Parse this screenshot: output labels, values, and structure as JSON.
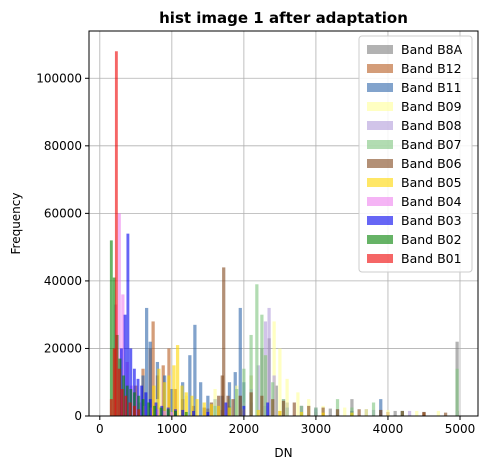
{
  "chart_data": {
    "type": "histogram",
    "title": "hist image 1 after adaptation",
    "xlabel": "DN",
    "ylabel": "Frequency",
    "xlim": [
      -150,
      5250
    ],
    "ylim": [
      0,
      114000
    ],
    "x_ticks": [
      0,
      1000,
      2000,
      3000,
      4000,
      5000
    ],
    "y_ticks": [
      0,
      20000,
      40000,
      60000,
      80000,
      100000
    ],
    "grid": true,
    "legend_position": "top-right",
    "bar_alpha": 0.6,
    "series": [
      {
        "name": "Band B8A",
        "color": "#7f7f7f",
        "bin_width": 45,
        "bins": [
          [
            1800,
            3000
          ],
          [
            1950,
            6000
          ],
          [
            2100,
            12000
          ],
          [
            2250,
            20000
          ],
          [
            2350,
            23000
          ],
          [
            2450,
            9000
          ],
          [
            2600,
            4000
          ],
          [
            2800,
            3000
          ],
          [
            3000,
            2500
          ],
          [
            3200,
            2200
          ],
          [
            3500,
            5000
          ],
          [
            3700,
            2000
          ],
          [
            3900,
            1800
          ],
          [
            4100,
            1500
          ],
          [
            4500,
            1200
          ],
          [
            4960,
            22000
          ]
        ]
      },
      {
        "name": "Band B12",
        "color": "#b85c1f",
        "bin_width": 45,
        "bins": [
          [
            500,
            9000
          ],
          [
            600,
            14000
          ],
          [
            700,
            20000
          ],
          [
            740,
            28000
          ],
          [
            800,
            12000
          ],
          [
            880,
            15000
          ],
          [
            960,
            20000
          ],
          [
            1050,
            8000
          ],
          [
            1150,
            5000
          ],
          [
            1300,
            3000
          ],
          [
            1500,
            2200
          ],
          [
            1700,
            1800
          ],
          [
            2000,
            1500
          ],
          [
            2500,
            1500
          ],
          [
            3000,
            1200
          ],
          [
            3500,
            1500
          ],
          [
            4000,
            1200
          ],
          [
            4500,
            1000
          ],
          [
            4960,
            1500
          ]
        ]
      },
      {
        "name": "Band B11",
        "color": "#2e66aa",
        "bin_width": 45,
        "bins": [
          [
            600,
            12000
          ],
          [
            650,
            32000
          ],
          [
            700,
            22000
          ],
          [
            800,
            16000
          ],
          [
            900,
            12000
          ],
          [
            1000,
            8000
          ],
          [
            1150,
            10000
          ],
          [
            1250,
            18000
          ],
          [
            1320,
            27000
          ],
          [
            1400,
            10000
          ],
          [
            1500,
            6000
          ],
          [
            1600,
            5000
          ],
          [
            1700,
            6000
          ],
          [
            1800,
            10000
          ],
          [
            1880,
            13000
          ],
          [
            1950,
            32000
          ],
          [
            2000,
            10000
          ],
          [
            2100,
            4000
          ],
          [
            2300,
            3000
          ],
          [
            2600,
            2500
          ],
          [
            3000,
            2000
          ],
          [
            3500,
            1500
          ],
          [
            3900,
            5000
          ],
          [
            4200,
            1500
          ],
          [
            4960,
            1500
          ]
        ]
      },
      {
        "name": "Band B09",
        "color": "#ffff99",
        "bin_width": 45,
        "bins": [
          [
            800,
            5000
          ],
          [
            1200,
            6000
          ],
          [
            1600,
            8000
          ],
          [
            1900,
            9000
          ],
          [
            2100,
            12000
          ],
          [
            2300,
            18000
          ],
          [
            2420,
            28000
          ],
          [
            2500,
            20000
          ],
          [
            2600,
            11000
          ],
          [
            2750,
            7000
          ],
          [
            2900,
            5000
          ],
          [
            3100,
            3000
          ],
          [
            3400,
            2500
          ],
          [
            3700,
            2000
          ],
          [
            4000,
            1800
          ],
          [
            4400,
            1500
          ],
          [
            4700,
            1500
          ],
          [
            4960,
            1500
          ]
        ]
      },
      {
        "name": "Band B08",
        "color": "#b39ddb",
        "bin_width": 45,
        "bins": [
          [
            2000,
            4000
          ],
          [
            2100,
            8000
          ],
          [
            2200,
            15000
          ],
          [
            2300,
            28000
          ],
          [
            2350,
            32000
          ],
          [
            2420,
            12000
          ],
          [
            2550,
            5000
          ],
          [
            2800,
            3000
          ],
          [
            3000,
            2500
          ],
          [
            3300,
            2000
          ],
          [
            3800,
            1800
          ],
          [
            4300,
            1500
          ],
          [
            4960,
            1500
          ]
        ]
      },
      {
        "name": "Band B07",
        "color": "#7fc47f",
        "bin_width": 45,
        "bins": [
          [
            1600,
            3000
          ],
          [
            1800,
            5000
          ],
          [
            1900,
            8000
          ],
          [
            2000,
            14000
          ],
          [
            2100,
            24000
          ],
          [
            2180,
            39000
          ],
          [
            2250,
            30000
          ],
          [
            2300,
            18000
          ],
          [
            2400,
            10000
          ],
          [
            2550,
            5000
          ],
          [
            2800,
            3000
          ],
          [
            3000,
            2500
          ],
          [
            3300,
            5000
          ],
          [
            3500,
            2500
          ],
          [
            3800,
            4000
          ],
          [
            4200,
            1500
          ],
          [
            4960,
            14000
          ]
        ]
      },
      {
        "name": "Band B06",
        "color": "#80461b",
        "bin_width": 45,
        "bins": [
          [
            1450,
            2500
          ],
          [
            1550,
            4000
          ],
          [
            1650,
            6000
          ],
          [
            1700,
            12000
          ],
          [
            1720,
            44000
          ],
          [
            1780,
            6000
          ],
          [
            1850,
            5000
          ],
          [
            1950,
            6000
          ],
          [
            2100,
            7000
          ],
          [
            2250,
            6000
          ],
          [
            2400,
            5000
          ],
          [
            2550,
            4500
          ],
          [
            2700,
            4000
          ],
          [
            2900,
            3000
          ],
          [
            3100,
            2500
          ],
          [
            3300,
            2000
          ],
          [
            3600,
            2000
          ],
          [
            3900,
            1800
          ],
          [
            4200,
            1500
          ],
          [
            4500,
            1200
          ],
          [
            4800,
            1000
          ]
        ]
      },
      {
        "name": "Band B05",
        "color": "#ffd700",
        "bin_width": 45,
        "bins": [
          [
            750,
            9000
          ],
          [
            820,
            14000
          ],
          [
            900,
            10000
          ],
          [
            960,
            12000
          ],
          [
            1030,
            15000
          ],
          [
            1080,
            21000
          ],
          [
            1140,
            9000
          ],
          [
            1200,
            7000
          ],
          [
            1280,
            6000
          ],
          [
            1350,
            5000
          ],
          [
            1450,
            4000
          ],
          [
            1550,
            3500
          ],
          [
            1650,
            3000
          ],
          [
            1800,
            2500
          ],
          [
            2000,
            2000
          ],
          [
            2200,
            1800
          ],
          [
            2500,
            1500
          ],
          [
            2800,
            1200
          ],
          [
            3100,
            1000
          ],
          [
            3500,
            1000
          ]
        ]
      },
      {
        "name": "Band B04",
        "color": "#ee82ee",
        "bin_width": 45,
        "bins": [
          [
            220,
            33000
          ],
          [
            270,
            60000
          ],
          [
            320,
            36000
          ],
          [
            380,
            16000
          ],
          [
            440,
            9000
          ],
          [
            500,
            6000
          ],
          [
            560,
            4000
          ],
          [
            620,
            3000
          ],
          [
            700,
            2500
          ],
          [
            800,
            2000
          ],
          [
            900,
            1500
          ],
          [
            1000,
            1200
          ]
        ]
      },
      {
        "name": "Band B03",
        "color": "#0000ee",
        "bin_width": 40,
        "bins": [
          [
            300,
            20000
          ],
          [
            350,
            30000
          ],
          [
            390,
            54000
          ],
          [
            430,
            20000
          ],
          [
            480,
            14000
          ],
          [
            530,
            11000
          ],
          [
            580,
            9000
          ],
          [
            640,
            7000
          ],
          [
            700,
            5000
          ],
          [
            780,
            4000
          ],
          [
            860,
            3000
          ],
          [
            950,
            2500
          ],
          [
            1050,
            2000
          ],
          [
            1150,
            1800
          ],
          [
            1300,
            1500
          ],
          [
            1500,
            1200
          ],
          [
            1750,
            4000
          ],
          [
            2000,
            3000
          ],
          [
            2330,
            4000
          ]
        ]
      },
      {
        "name": "Band B02",
        "color": "#008000",
        "bin_width": 40,
        "bins": [
          [
            160,
            52000
          ],
          [
            200,
            41000
          ],
          [
            240,
            24000
          ],
          [
            280,
            17000
          ],
          [
            330,
            12000
          ],
          [
            380,
            9000
          ],
          [
            430,
            8000
          ],
          [
            480,
            7000
          ],
          [
            540,
            6000
          ],
          [
            600,
            5000
          ],
          [
            680,
            4000
          ],
          [
            760,
            3000
          ],
          [
            850,
            2500
          ],
          [
            950,
            2000
          ],
          [
            1050,
            1500
          ],
          [
            1200,
            1200
          ]
        ]
      },
      {
        "name": "Band B01",
        "color": "#ee0000",
        "bin_width": 40,
        "bins": [
          [
            160,
            5000
          ],
          [
            200,
            20000
          ],
          [
            230,
            108000
          ],
          [
            270,
            14000
          ],
          [
            310,
            8000
          ],
          [
            360,
            6000
          ],
          [
            420,
            4000
          ],
          [
            480,
            3000
          ],
          [
            540,
            2000
          ]
        ]
      }
    ]
  }
}
